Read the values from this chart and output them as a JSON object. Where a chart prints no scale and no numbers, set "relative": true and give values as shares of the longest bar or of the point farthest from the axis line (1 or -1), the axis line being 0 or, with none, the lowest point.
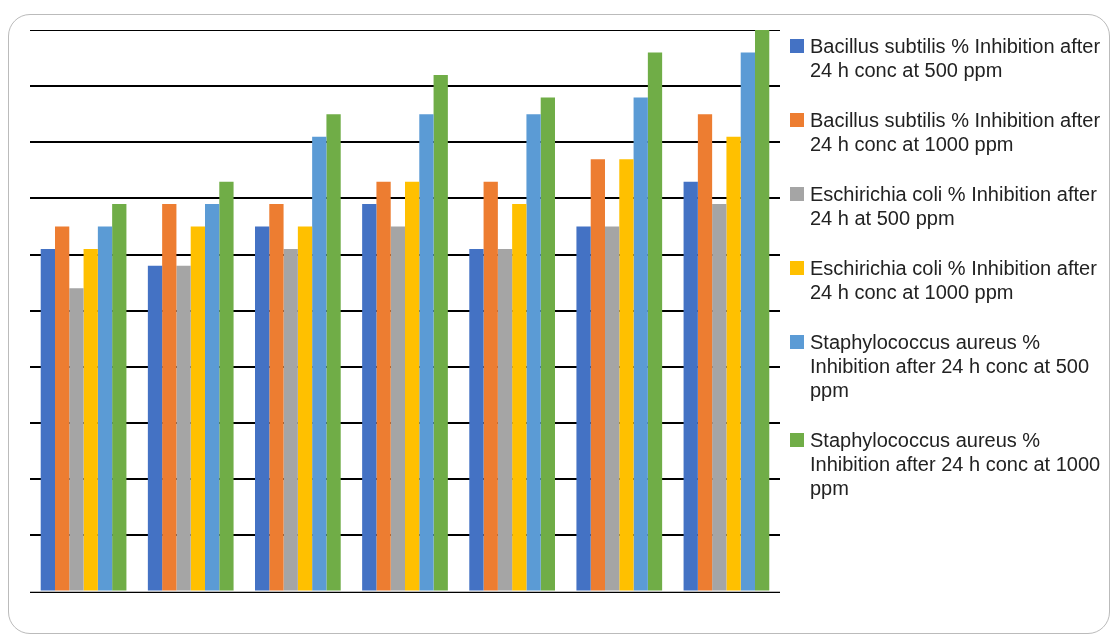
{
  "chart_data": {
    "type": "bar",
    "relative": true,
    "grid": "y",
    "legend": "right",
    "categories": [
      null,
      null,
      null,
      null,
      null,
      null,
      null
    ],
    "series": [
      {
        "name": "Bacillus subtilis % Inhibition after 24 h conc at 500 ppm",
        "color": "#4472c4",
        "values": [
          0.61,
          0.58,
          0.65,
          0.69,
          0.61,
          0.65,
          0.73
        ]
      },
      {
        "name": "Bacillus subtilis % Inhibition after 24 h conc at 1000 ppm",
        "color": "#ed7d31",
        "values": [
          0.65,
          0.69,
          0.69,
          0.73,
          0.73,
          0.77,
          0.85
        ]
      },
      {
        "name": "Eschirichia coli % Inhibition after 24 h at 500 ppm",
        "color": "#a5a5a5",
        "values": [
          0.54,
          0.58,
          0.61,
          0.65,
          0.61,
          0.65,
          0.69
        ]
      },
      {
        "name": "Eschirichia coli % Inhibition after 24 h conc at 1000 ppm",
        "color": "#ffc000",
        "values": [
          0.61,
          0.65,
          0.65,
          0.73,
          0.69,
          0.77,
          0.81
        ]
      },
      {
        "name": " Staphylococcus aureus  % Inhibition after 24 h conc at 500 ppm",
        "color": "#5b9bd5",
        "values": [
          0.65,
          0.69,
          0.81,
          0.85,
          0.85,
          0.88,
          0.96
        ]
      },
      {
        "name": " Staphylococcus aureus % Inhibition after 24 h conc at 1000 ppm",
        "color": "#70ad47",
        "values": [
          0.69,
          0.73,
          0.85,
          0.92,
          0.88,
          0.96,
          1
        ]
      }
    ]
  }
}
